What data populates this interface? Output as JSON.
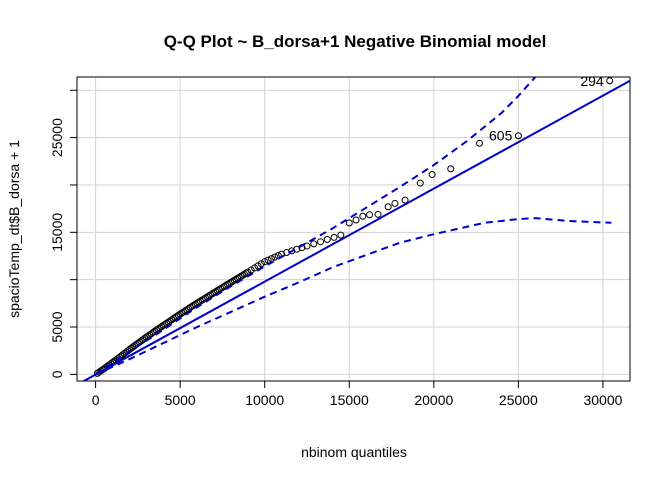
{
  "chart_data": {
    "type": "scatter",
    "title": "Q-Q Plot ~ B_dorsa+1 Negative Binomial model",
    "xlabel": "nbinom quantiles",
    "ylabel": "spacioTemp_dt$B_dorsa + 1",
    "xlim": [
      -1100,
      31600
    ],
    "ylim": [
      -700,
      31400
    ],
    "xticks": [
      0,
      5000,
      10000,
      15000,
      20000,
      25000,
      30000
    ],
    "xtick_labels": [
      "0",
      "5000",
      "10000",
      "15000",
      "20000",
      "25000",
      "30000"
    ],
    "yticks": [
      0,
      5000,
      15000,
      25000
    ],
    "ytick_labels": [
      "0",
      "5000",
      "15000",
      "25000"
    ],
    "grid_x": [
      0,
      5000,
      10000,
      15000,
      20000,
      25000,
      30000
    ],
    "grid_y": [
      0,
      5000,
      10000,
      15000,
      20000,
      25000,
      30000
    ],
    "grid": true,
    "colors": {
      "points": "#000000",
      "lines": "#0000cc",
      "grid": "#d3d3d3",
      "frame": "#000000"
    },
    "reference_line": {
      "style": "solid",
      "points": [
        [
          -1100,
          -1100
        ],
        [
          31600,
          31000
        ]
      ]
    },
    "upper_envelope": {
      "style": "dashed",
      "x": [
        0,
        2000,
        4000,
        6000,
        8000,
        10000,
        12000,
        14000,
        16000,
        18000,
        20000,
        22000,
        24000,
        25000,
        26000
      ],
      "y": [
        0,
        2400,
        4700,
        7100,
        9300,
        11400,
        13400,
        15400,
        17600,
        19800,
        22100,
        24700,
        27600,
        29400,
        31400
      ]
    },
    "lower_envelope": {
      "style": "dashed",
      "x": [
        0,
        2000,
        4000,
        6000,
        8000,
        10000,
        12000,
        14000,
        16000,
        18000,
        20000,
        22000,
        23000,
        25000,
        26000,
        28000,
        30500
      ],
      "y": [
        0,
        1600,
        3300,
        5000,
        6600,
        8200,
        9700,
        11300,
        12600,
        13900,
        14800,
        15600,
        16000,
        16400,
        16500,
        16200,
        16000
      ]
    },
    "points": {
      "x": [
        100,
        200,
        300,
        400,
        500,
        600,
        700,
        800,
        900,
        1000,
        1100,
        1200,
        1300,
        1400,
        1500,
        1600,
        1700,
        1800,
        1900,
        2000,
        2100,
        2200,
        2300,
        2400,
        2500,
        2600,
        2700,
        2800,
        2900,
        3000,
        3100,
        3200,
        3300,
        3400,
        3500,
        3600,
        3700,
        3800,
        3900,
        4000,
        4100,
        4200,
        4300,
        4400,
        4500,
        4600,
        4700,
        4800,
        4900,
        5000,
        5100,
        5200,
        5300,
        5400,
        5500,
        5600,
        5700,
        5800,
        5900,
        6000,
        6100,
        6200,
        6300,
        6400,
        6500,
        6600,
        6700,
        6800,
        6900,
        7000,
        7100,
        7200,
        7300,
        7400,
        7500,
        7600,
        7700,
        7800,
        7900,
        8000,
        8100,
        8200,
        8300,
        8400,
        8500,
        8600,
        8700,
        8800,
        8900,
        9000,
        9200,
        9400,
        9600,
        9800,
        10000,
        10200,
        10400,
        10600,
        10800,
        11000,
        11300,
        11600,
        11900,
        12200,
        12500,
        12900,
        13300,
        13700,
        14100,
        14500,
        15000,
        15400,
        15800,
        16200,
        16700,
        17300,
        17700,
        18300,
        19200,
        19900,
        21000,
        22700,
        25000,
        30400
      ],
      "y": [
        100,
        230,
        350,
        480,
        600,
        730,
        860,
        990,
        1120,
        1250,
        1390,
        1520,
        1660,
        1790,
        1930,
        2060,
        2200,
        2340,
        2480,
        2620,
        2750,
        2890,
        3020,
        3150,
        3280,
        3410,
        3540,
        3670,
        3800,
        3930,
        4050,
        4180,
        4300,
        4430,
        4550,
        4680,
        4800,
        4920,
        5040,
        5160,
        5280,
        5400,
        5520,
        5640,
        5760,
        5880,
        6000,
        6120,
        6240,
        6360,
        6480,
        6600,
        6720,
        6830,
        6950,
        7060,
        7180,
        7290,
        7410,
        7520,
        7630,
        7740,
        7850,
        7960,
        8070,
        8180,
        8290,
        8400,
        8510,
        8620,
        8730,
        8840,
        8950,
        9060,
        9170,
        9280,
        9390,
        9500,
        9600,
        9710,
        9820,
        9930,
        10040,
        10150,
        10250,
        10360,
        10470,
        10580,
        10690,
        10800,
        11020,
        11240,
        11460,
        11680,
        11900,
        12060,
        12220,
        12380,
        12540,
        12700,
        12870,
        13040,
        13210,
        13380,
        13550,
        13780,
        14010,
        14240,
        14470,
        14700,
        15980,
        16300,
        16700,
        16850,
        16900,
        17700,
        18050,
        18400,
        20200,
        21100,
        21700,
        24400,
        25200,
        31000
      ]
    },
    "labeled_points": [
      {
        "label": "294",
        "x": 30400,
        "y": 31000
      },
      {
        "label": "605",
        "x": 25000,
        "y": 25200
      }
    ]
  }
}
